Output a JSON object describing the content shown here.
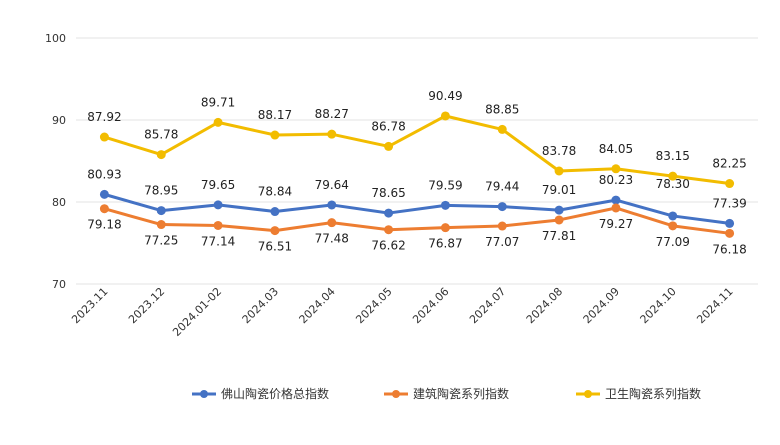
{
  "chart_data": {
    "type": "line",
    "title": "",
    "xlabel": "",
    "ylabel": "",
    "ylim": [
      70,
      100
    ],
    "yticks": [
      70,
      80,
      90,
      100
    ],
    "grid": true,
    "legend_position": "bottom",
    "categories": [
      "2023.11",
      "2023.12",
      "2024.01-02",
      "2024.03",
      "2024.04",
      "2024.05",
      "2024.06",
      "2024.07",
      "2024.08",
      "2024.09",
      "2024.10",
      "2024.11"
    ],
    "series": [
      {
        "name": "佛山陶瓷价格总指数",
        "color": "#4472c4",
        "values": [
          80.93,
          78.95,
          79.65,
          78.84,
          79.64,
          78.65,
          79.59,
          79.44,
          79.01,
          80.23,
          78.3,
          77.39
        ],
        "labels": [
          "80.93",
          "78.95",
          "79.65",
          "78.84",
          "79.64",
          "78.65",
          "79.59",
          "79.44",
          "79.01",
          "80.23",
          "78.30",
          "77.39"
        ]
      },
      {
        "name": "建筑陶瓷系列指数",
        "color": "#ed7d31",
        "values": [
          79.18,
          77.25,
          77.14,
          76.51,
          77.48,
          76.62,
          76.87,
          77.07,
          77.81,
          79.27,
          77.09,
          76.18
        ],
        "labels": [
          "79.18",
          "77.25",
          "77.14",
          "76.51",
          "77.48",
          "76.62",
          "76.87",
          "77.07",
          "77.81",
          "79.27",
          "77.09",
          "76.18"
        ]
      },
      {
        "name": "卫生陶瓷系列指数",
        "color": "#f2bc00",
        "values": [
          87.92,
          85.78,
          89.71,
          88.17,
          88.27,
          86.78,
          90.49,
          88.85,
          83.78,
          84.05,
          83.15,
          82.25
        ],
        "labels": [
          "87.92",
          "85.78",
          "89.71",
          "88.17",
          "88.27",
          "86.78",
          "90.49",
          "88.85",
          "83.78",
          "84.05",
          "83.15",
          "82.25"
        ]
      }
    ]
  }
}
